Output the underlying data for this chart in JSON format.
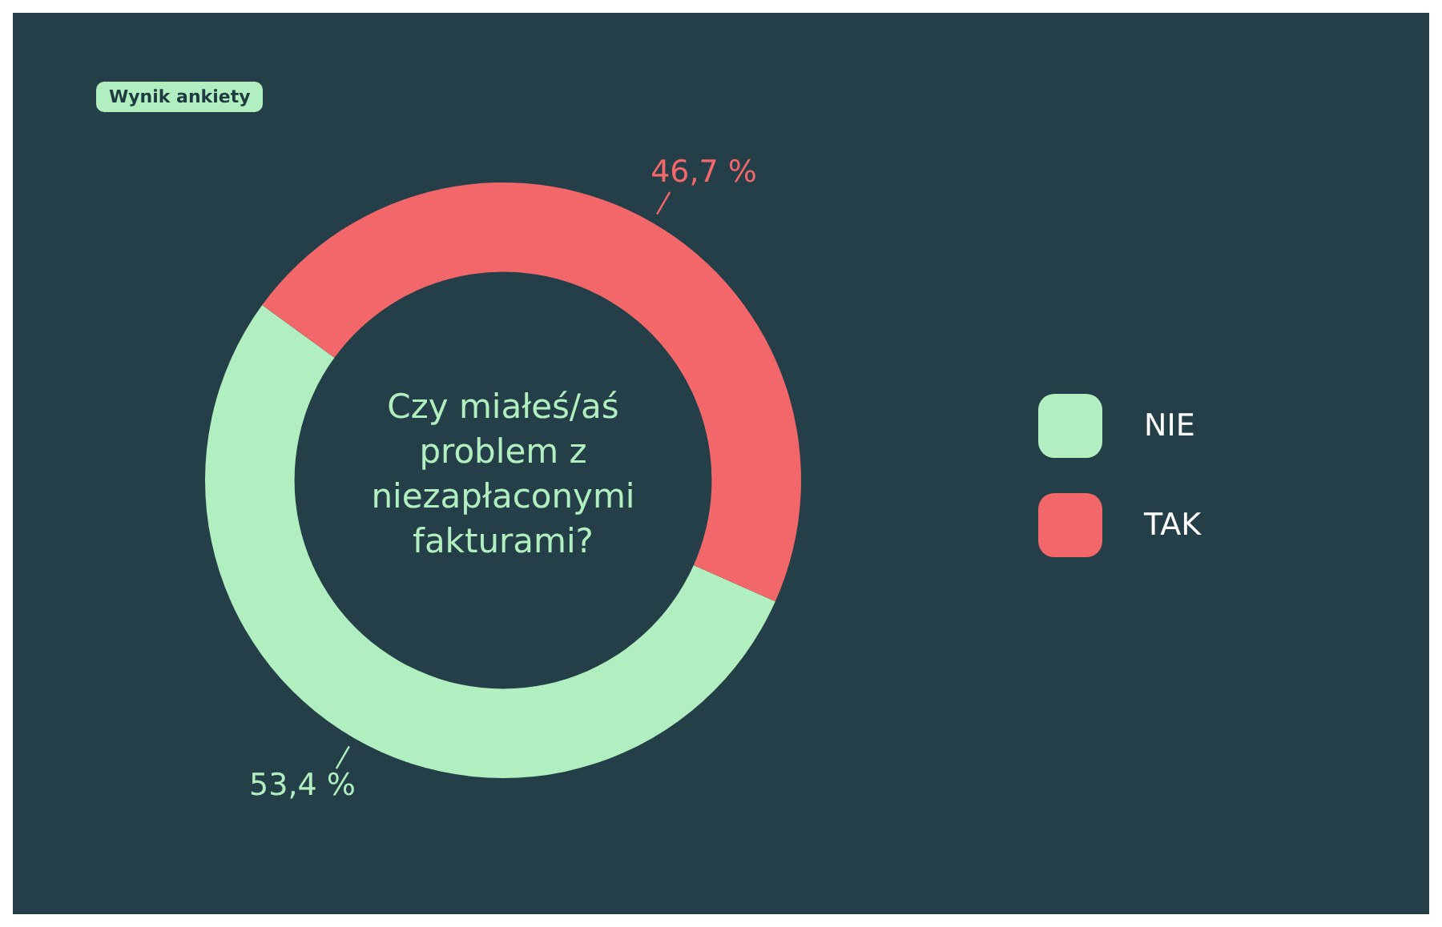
{
  "chart_data": {
    "type": "donut",
    "title": "Wynik ankiety",
    "subtitle": "Czy miałeś/aś problem z niezapłaconymi fakturami?",
    "categories": [
      "NIE",
      "TAK"
    ],
    "values": [
      53.4,
      46.7
    ],
    "colors": [
      "#b2efc0",
      "#f2686a"
    ],
    "value_labels": [
      "53,4 %",
      "46,7 %"
    ],
    "legend": "right"
  }
}
